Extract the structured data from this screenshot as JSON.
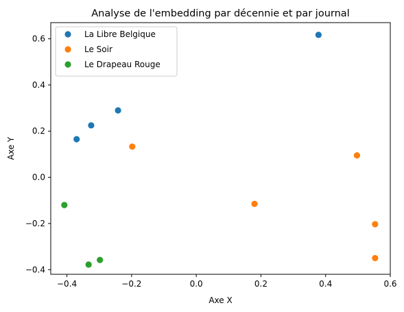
{
  "chart_data": {
    "type": "scatter",
    "title": "Analyse de l'embedding par décennie et par journal",
    "xlabel": "Axe X",
    "ylabel": "Axe Y",
    "xlim": [
      -0.45,
      0.6
    ],
    "ylim": [
      -0.42,
      0.67
    ],
    "xticks": [
      -0.4,
      -0.2,
      0.0,
      0.2,
      0.4,
      0.6
    ],
    "xtick_labels": [
      "−0.4",
      "−0.2",
      "0.0",
      "0.2",
      "0.4",
      "0.6"
    ],
    "yticks": [
      -0.4,
      -0.2,
      0.0,
      0.2,
      0.4,
      0.6
    ],
    "ytick_labels": [
      "−0.4",
      "−0.2",
      "0.0",
      "0.2",
      "0.4",
      "0.6"
    ],
    "grid": false,
    "legend_position": "upper-left",
    "series": [
      {
        "name": "La Libre Belgique",
        "color": "#1f77b4",
        "points": [
          [
            -0.37,
            0.165
          ],
          [
            -0.325,
            0.225
          ],
          [
            -0.242,
            0.29
          ],
          [
            0.378,
            0.617
          ]
        ]
      },
      {
        "name": "Le Soir",
        "color": "#ff7f0e",
        "points": [
          [
            -0.198,
            0.133
          ],
          [
            0.18,
            -0.115
          ],
          [
            0.497,
            0.095
          ],
          [
            0.553,
            -0.203
          ],
          [
            0.553,
            -0.35
          ]
        ]
      },
      {
        "name": "Le Drapeau Rouge",
        "color": "#2ca02c",
        "points": [
          [
            -0.408,
            -0.12
          ],
          [
            -0.333,
            -0.378
          ],
          [
            -0.298,
            -0.358
          ]
        ]
      }
    ]
  }
}
